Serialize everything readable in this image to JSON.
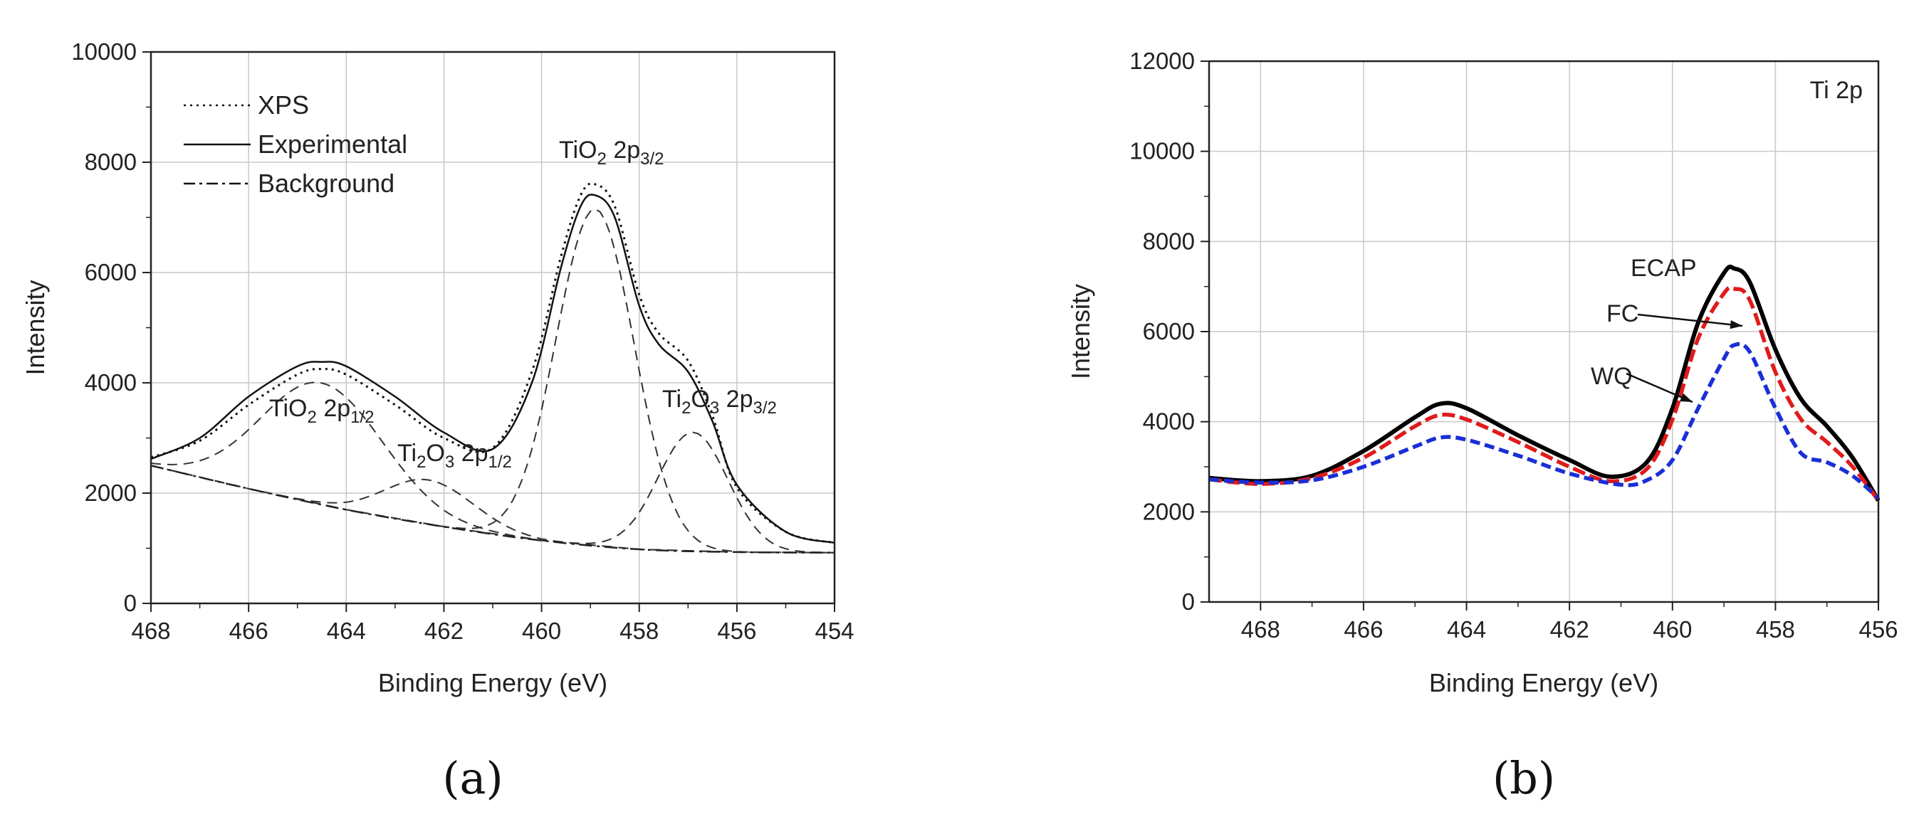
{
  "chart_data": [
    {
      "type": "line",
      "panel_label": "(a)",
      "xlabel": "Binding Energy (eV)",
      "ylabel": "Intensity",
      "xlim": [
        468,
        454
      ],
      "ylim": [
        0,
        10000
      ],
      "x_reversed": true,
      "grid": true,
      "xticks": [
        468,
        466,
        464,
        462,
        460,
        458,
        456,
        454
      ],
      "yticks": [
        0,
        2000,
        4000,
        6000,
        8000,
        10000
      ],
      "legend": {
        "position": "top-left",
        "entries": [
          {
            "label": "XPS",
            "style": "dotted"
          },
          {
            "label": "Experimental",
            "style": "solid"
          },
          {
            "label": "Background",
            "style": "dashdot"
          }
        ]
      },
      "peaks": [
        {
          "name": "TiO2 2p1/2",
          "main": "TiO",
          "sub1": "2",
          "mid": " 2p",
          "sub2": "1/2",
          "center": 464.5,
          "amplitude": 2200,
          "sigma": 1.25
        },
        {
          "name": "Ti2O3 2p1/2",
          "main": "Ti",
          "sub1": "2",
          "mid": "O",
          "sub2": "3",
          "tail": " 2p",
          "sub3": "1/2",
          "center": 462.3,
          "amplitude": 800,
          "sigma": 0.9
        },
        {
          "name": "TiO2 2p3/2",
          "main": "TiO",
          "sub1": "2",
          "mid": " 2p",
          "sub2": "3/2",
          "center": 458.9,
          "amplitude": 6100,
          "sigma": 0.8
        },
        {
          "name": "Ti2O3 2p3/2",
          "main": "Ti",
          "sub1": "2",
          "mid": "O",
          "sub2": "3",
          "tail": " 2p",
          "sub3": "3/2",
          "center": 456.9,
          "amplitude": 2150,
          "sigma": 0.72
        }
      ],
      "background": {
        "x": [
          468,
          466,
          464,
          462,
          460,
          458,
          456,
          454
        ],
        "y": [
          2500,
          2080,
          1700,
          1390,
          1140,
          980,
          930,
          920
        ]
      },
      "series": [
        {
          "name": "XPS",
          "style": "dotted",
          "x": [
            468,
            467,
            466,
            465,
            464.5,
            464,
            463,
            462,
            461,
            460.2,
            459.6,
            459.2,
            458.9,
            458.5,
            458,
            457.6,
            457,
            456.5,
            456,
            455,
            454
          ],
          "y": [
            2650,
            2950,
            3600,
            4150,
            4250,
            4150,
            3600,
            3000,
            2820,
            4200,
            6300,
            7400,
            7600,
            7200,
            5600,
            4900,
            4400,
            3400,
            2100,
            1300,
            1100
          ]
        },
        {
          "name": "Experimental",
          "style": "solid",
          "x": [
            468,
            467,
            466,
            465,
            464.5,
            464,
            463,
            462,
            461,
            460.2,
            459.6,
            459.2,
            458.9,
            458.5,
            458,
            457.6,
            457,
            456.5,
            456,
            455,
            454
          ],
          "y": [
            2620,
            3000,
            3750,
            4300,
            4380,
            4300,
            3750,
            3100,
            2800,
            4000,
            6100,
            7200,
            7400,
            7000,
            5400,
            4700,
            4200,
            3300,
            2150,
            1300,
            1100
          ]
        }
      ]
    },
    {
      "type": "line",
      "panel_label": "(b)",
      "title": "Ti 2p",
      "xlabel": "Binding Energy (eV)",
      "ylabel": "Intensity",
      "xlim": [
        469,
        456
      ],
      "ylim": [
        0,
        12000
      ],
      "x_reversed": true,
      "grid": true,
      "xticks": [
        468,
        466,
        464,
        462,
        460,
        458,
        456
      ],
      "yticks": [
        0,
        2000,
        4000,
        6000,
        8000,
        10000,
        12000
      ],
      "series": [
        {
          "name": "ECAP",
          "color": "#000000",
          "style": "solid",
          "x": [
            469,
            468,
            467,
            466,
            465,
            464.5,
            464,
            463,
            462,
            461.2,
            460.5,
            460,
            459.5,
            459,
            458.8,
            458.5,
            458,
            457.5,
            457,
            456.5,
            456
          ],
          "y": [
            2750,
            2680,
            2800,
            3350,
            4100,
            4400,
            4300,
            3700,
            3150,
            2780,
            3100,
            4300,
            6200,
            7300,
            7400,
            7100,
            5600,
            4500,
            3900,
            3200,
            2250
          ]
        },
        {
          "name": "FC",
          "color": "#e01b1b",
          "style": "dashed",
          "x": [
            469,
            468,
            467,
            466,
            465,
            464.5,
            464,
            463,
            462,
            461.2,
            460.5,
            460,
            459.5,
            459,
            458.8,
            458.5,
            458,
            457.5,
            457,
            456.5,
            456
          ],
          "y": [
            2720,
            2620,
            2750,
            3200,
            3900,
            4150,
            4050,
            3550,
            3000,
            2680,
            2950,
            4050,
            5850,
            6850,
            6950,
            6700,
            5100,
            4050,
            3550,
            3000,
            2250
          ]
        },
        {
          "name": "WQ",
          "color": "#1a2fd6",
          "style": "dashed",
          "x": [
            469,
            468,
            467,
            466,
            465,
            464.5,
            464,
            463,
            462,
            461,
            460.5,
            460,
            459.5,
            459,
            458.8,
            458.5,
            458,
            457.5,
            457,
            456.5,
            456
          ],
          "y": [
            2720,
            2650,
            2700,
            3000,
            3450,
            3650,
            3600,
            3250,
            2850,
            2600,
            2700,
            3150,
            4300,
            5400,
            5700,
            5550,
            4300,
            3300,
            3100,
            2800,
            2300
          ]
        }
      ],
      "annotations": [
        {
          "text": "ECAP",
          "target": "ECAP"
        },
        {
          "text": "FC",
          "target": "FC",
          "arrow": true
        },
        {
          "text": "WQ",
          "target": "WQ",
          "arrow": true
        }
      ]
    }
  ]
}
